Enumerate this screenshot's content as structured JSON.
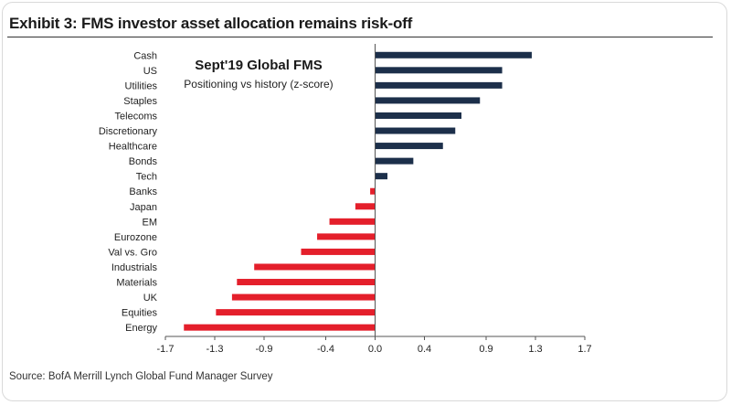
{
  "exhibit": {
    "title": "Exhibit 3: FMS investor asset allocation remains risk-off",
    "source": "Source: BofA Merrill Lynch Global Fund Manager Survey"
  },
  "chart_data": {
    "type": "bar",
    "orientation": "horizontal",
    "title": "Sept'19 Global FMS",
    "subtitle": "Positioning vs history (z-score)",
    "xlabel": "",
    "ylabel": "",
    "categories": [
      "Cash",
      "US",
      "Utilities",
      "Staples",
      "Telecoms",
      "Discretionary",
      "Healthcare",
      "Bonds",
      "Tech",
      "Banks",
      "Japan",
      "EM",
      "Eurozone",
      "Val vs. Gro",
      "Industrials",
      "Materials",
      "UK",
      "Equities",
      "Energy"
    ],
    "values": [
      1.27,
      1.03,
      1.03,
      0.85,
      0.7,
      0.65,
      0.55,
      0.31,
      0.1,
      -0.04,
      -0.16,
      -0.37,
      -0.47,
      -0.6,
      -0.98,
      -1.12,
      -1.16,
      -1.29,
      -1.55
    ],
    "xlim": [
      -1.7,
      1.7
    ],
    "xticks": [
      -1.7,
      -1.3,
      -0.9,
      -0.4,
      0.0,
      0.4,
      0.9,
      1.3,
      1.7
    ],
    "xtick_labels": [
      "-1.7",
      "-1.3",
      "-0.9",
      "-0.4",
      "0.0",
      "0.4",
      "0.9",
      "1.3",
      "1.7"
    ],
    "grid": false,
    "legend": "none",
    "colors": {
      "positive": "#1c2f4a",
      "negative": "#e41f2b",
      "axis": "#555555"
    }
  }
}
